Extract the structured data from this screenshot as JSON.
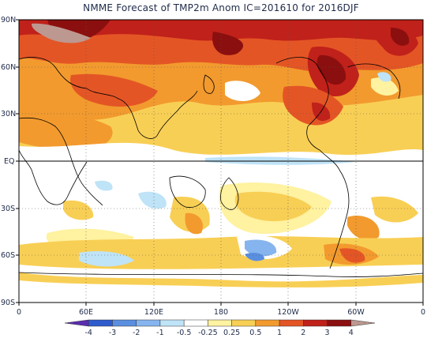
{
  "title": "NMME Forecast of TMP2m Anom  IC=201610 for 2016DJF",
  "axes": {
    "y_ticks": [
      "90N",
      "60N",
      "30N",
      "EQ",
      "30S",
      "60S",
      "90S"
    ],
    "x_ticks": [
      "0",
      "60E",
      "120E",
      "180",
      "120W",
      "60W",
      "0"
    ]
  },
  "colorbar": {
    "labels": [
      "-4",
      "-3",
      "-2",
      "-1",
      "-0.5",
      "-0.25",
      "0.25",
      "0.5",
      "1",
      "2",
      "3",
      "4"
    ],
    "colors": [
      "#5a2db0",
      "#2f5ccd",
      "#5a8fe0",
      "#86b4ee",
      "#bfe3f7",
      "#ffffff",
      "#fff2a0",
      "#f8cf55",
      "#f29a2e",
      "#e45525",
      "#c0211a",
      "#8b0f0f",
      "#bd9890"
    ]
  },
  "chart_data": {
    "type": "heatmap",
    "title": "NMME Forecast of TMP2m Anom  IC=201610 for 2016DJF",
    "xlim": [
      0,
      360
    ],
    "ylim": [
      -90,
      90
    ],
    "x_ticks": [
      "0",
      "60E",
      "120E",
      "180",
      "120W",
      "60W",
      "0"
    ],
    "y_ticks": [
      "90N",
      "60N",
      "30N",
      "EQ",
      "30S",
      "60S",
      "90S"
    ],
    "levels": [
      -4,
      -3,
      -2,
      -1,
      -0.5,
      -0.25,
      0.25,
      0.5,
      1,
      2,
      3,
      4
    ],
    "grid": true
  }
}
